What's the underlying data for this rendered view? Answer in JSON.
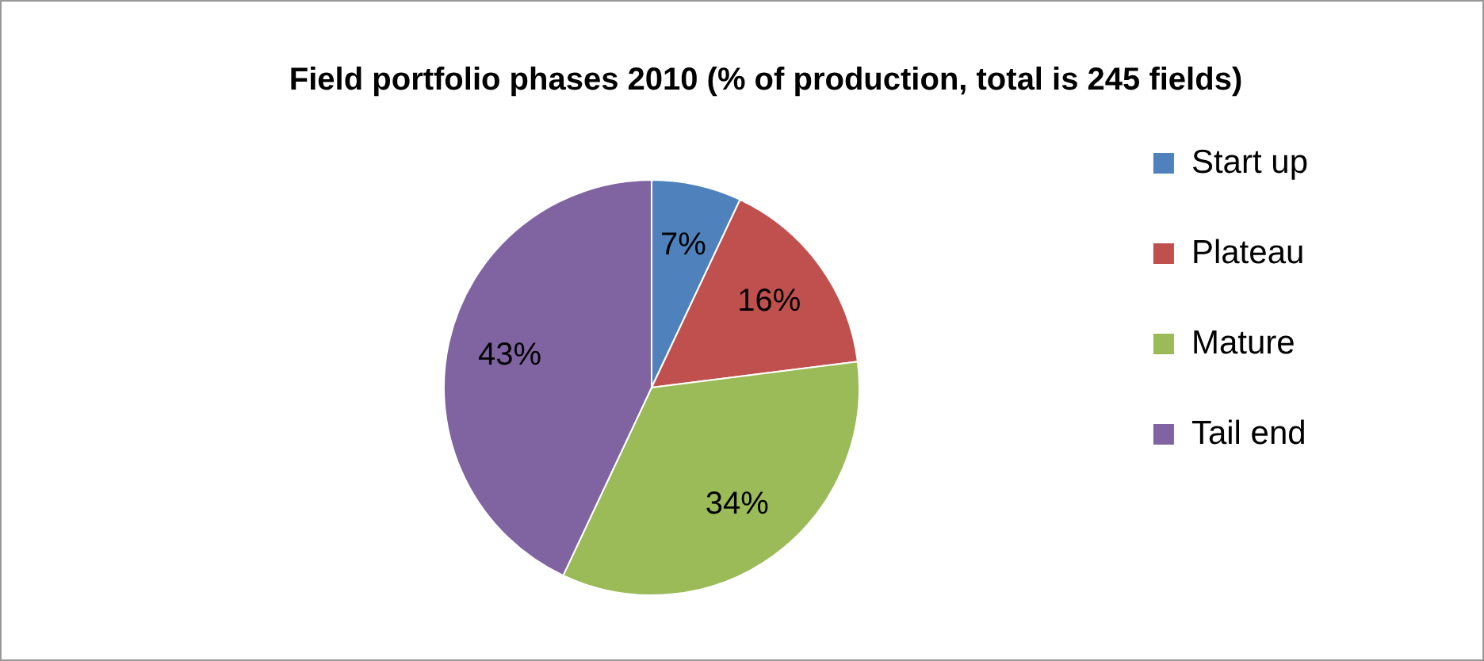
{
  "chart_data": {
    "type": "pie",
    "title": "Field portfolio phases 2010 (% of production, total is 245 fields)",
    "categories": [
      "Start up",
      "Plateau",
      "Mature",
      "Tail end"
    ],
    "values": [
      7,
      16,
      34,
      43
    ],
    "colors": [
      "#4f81bd",
      "#c0504d",
      "#9bbb59",
      "#8064a2"
    ],
    "value_labels": [
      "7%",
      "16%",
      "34%",
      "43%"
    ],
    "legend": "right"
  }
}
